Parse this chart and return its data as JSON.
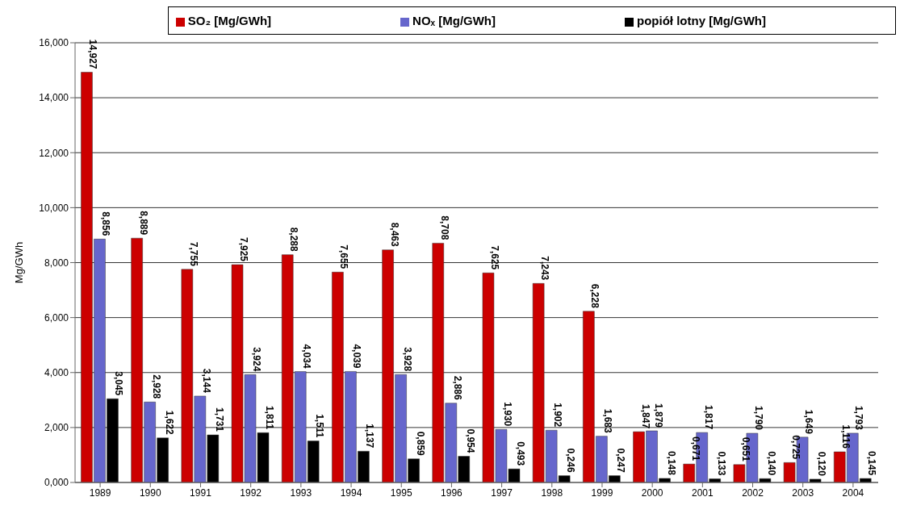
{
  "chart_data": {
    "type": "bar",
    "ylabel": "Mg/GWh",
    "categories": [
      "1989",
      "1990",
      "1991",
      "1992",
      "1993",
      "1994",
      "1995",
      "1996",
      "1997",
      "1998",
      "1999",
      "2000",
      "2001",
      "2002",
      "2003",
      "2004"
    ],
    "series": [
      {
        "name": "SO₂ [Mg/GWh]",
        "color": "#cc0000",
        "values": [
          14.927,
          8.889,
          7.755,
          7.925,
          8.288,
          7.655,
          8.463,
          8.708,
          7.625,
          7.243,
          6.228,
          1.847,
          0.671,
          0.651,
          0.725,
          1.116
        ],
        "value_labels": [
          "14,927",
          "8,889",
          "7,755",
          "7,925",
          "8,288",
          "7,655",
          "8,463",
          "8,708",
          "7,625",
          "7,243",
          "6,228",
          "1,847",
          "0,671",
          "0,651",
          "0,725",
          "1,116"
        ]
      },
      {
        "name": "NOₓ [Mg/GWh]",
        "color": "#6666cc",
        "values": [
          8.856,
          2.928,
          3.144,
          3.924,
          4.034,
          4.039,
          3.928,
          2.886,
          1.93,
          1.902,
          1.683,
          1.879,
          1.817,
          1.79,
          1.649,
          1.793
        ],
        "value_labels": [
          "8,856",
          "2,928",
          "3,144",
          "3,924",
          "4,034",
          "4,039",
          "3,928",
          "2,886",
          "1,930",
          "1,902",
          "1,683",
          "1,879",
          "1,817",
          "1,790",
          "1,649",
          "1,793"
        ]
      },
      {
        "name": "popiół lotny [Mg/GWh]",
        "color": "#000000",
        "values": [
          3.045,
          1.622,
          1.731,
          1.811,
          1.511,
          1.137,
          0.859,
          0.954,
          0.493,
          0.246,
          0.247,
          0.148,
          0.133,
          0.14,
          0.12,
          0.145
        ],
        "value_labels": [
          "3,045",
          "1,622",
          "1,731",
          "1,811",
          "1,511",
          "1,137",
          "0,859",
          "0,954",
          "0,493",
          "0,246",
          "0,247",
          "0,148",
          "0,133",
          "0,140",
          "0,120",
          "0,145"
        ]
      }
    ],
    "ylim": [
      0,
      16
    ],
    "yticks": [
      {
        "value": 0,
        "label": "0,000"
      },
      {
        "value": 2,
        "label": "2,000"
      },
      {
        "value": 4,
        "label": "4,000"
      },
      {
        "value": 6,
        "label": "6,000"
      },
      {
        "value": 8,
        "label": "8,000"
      },
      {
        "value": 10,
        "label": "10,000"
      },
      {
        "value": 12,
        "label": "12,000"
      },
      {
        "value": 14,
        "label": "14,000"
      },
      {
        "value": 16,
        "label": "16,000"
      }
    ],
    "grid": "y",
    "legend": "top"
  }
}
